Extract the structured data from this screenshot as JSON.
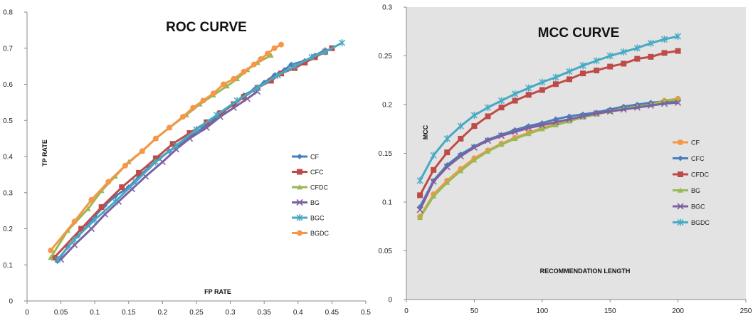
{
  "chart_data": [
    {
      "type": "line",
      "title": "ROC CURVE",
      "xlabel": "FP RATE",
      "ylabel": "TP RATE",
      "xlim": [
        0,
        0.5
      ],
      "ylim": [
        0,
        0.8
      ],
      "xticks": [
        "0",
        "0.05",
        "0.1",
        "0.15",
        "0.2",
        "0.25",
        "0.3",
        "0.35",
        "0.4",
        "0.45",
        "0.5"
      ],
      "yticks": [
        "0",
        "0.1",
        "0.2",
        "0.3",
        "0.4",
        "0.5",
        "0.6",
        "0.7",
        "0.8"
      ],
      "grid": false,
      "background": "#ffffff",
      "legend_position": "right",
      "series": [
        {
          "name": "CF",
          "color": "#4a7ebb",
          "marker": "diamond",
          "points": [
            [
              0.045,
              0.11
            ],
            [
              0.06,
              0.15
            ],
            [
              0.075,
              0.18
            ],
            [
              0.09,
              0.21
            ],
            [
              0.1,
              0.235
            ],
            [
              0.115,
              0.265
            ],
            [
              0.13,
              0.29
            ],
            [
              0.15,
              0.315
            ],
            [
              0.165,
              0.345
            ],
            [
              0.18,
              0.37
            ],
            [
              0.195,
              0.395
            ],
            [
              0.21,
              0.415
            ],
            [
              0.23,
              0.44
            ],
            [
              0.245,
              0.46
            ],
            [
              0.26,
              0.48
            ],
            [
              0.275,
              0.5
            ],
            [
              0.29,
              0.525
            ],
            [
              0.305,
              0.545
            ],
            [
              0.32,
              0.57
            ],
            [
              0.335,
              0.585
            ],
            [
              0.35,
              0.605
            ],
            [
              0.365,
              0.625
            ],
            [
              0.38,
              0.64
            ],
            [
              0.39,
              0.655
            ],
            [
              0.41,
              0.665
            ],
            [
              0.425,
              0.68
            ],
            [
              0.44,
              0.695
            ]
          ]
        },
        {
          "name": "CFC",
          "color": "#be4b48",
          "marker": "square",
          "points": [
            [
              0.04,
              0.12
            ],
            [
              0.08,
              0.2
            ],
            [
              0.11,
              0.26
            ],
            [
              0.14,
              0.315
            ],
            [
              0.165,
              0.355
            ],
            [
              0.19,
              0.395
            ],
            [
              0.215,
              0.435
            ],
            [
              0.24,
              0.465
            ],
            [
              0.265,
              0.495
            ],
            [
              0.285,
              0.52
            ],
            [
              0.305,
              0.545
            ],
            [
              0.32,
              0.565
            ],
            [
              0.34,
              0.59
            ],
            [
              0.36,
              0.61
            ],
            [
              0.375,
              0.63
            ],
            [
              0.395,
              0.645
            ],
            [
              0.41,
              0.66
            ],
            [
              0.425,
              0.675
            ],
            [
              0.44,
              0.69
            ],
            [
              0.45,
              0.7
            ]
          ]
        },
        {
          "name": "CFDC",
          "color": "#98b954",
          "marker": "triangle",
          "points": [
            [
              0.035,
              0.12
            ],
            [
              0.06,
              0.195
            ],
            [
              0.09,
              0.255
            ],
            [
              0.11,
              0.305
            ],
            [
              0.13,
              0.345
            ],
            [
              0.15,
              0.385
            ],
            [
              0.17,
              0.415
            ],
            [
              0.19,
              0.45
            ],
            [
              0.21,
              0.48
            ],
            [
              0.235,
              0.515
            ],
            [
              0.255,
              0.545
            ],
            [
              0.275,
              0.57
            ],
            [
              0.295,
              0.595
            ],
            [
              0.31,
              0.615
            ],
            [
              0.325,
              0.64
            ],
            [
              0.34,
              0.66
            ],
            [
              0.36,
              0.68
            ]
          ]
        },
        {
          "name": "BG",
          "color": "#7d60a0",
          "marker": "x",
          "points": [
            [
              0.05,
              0.115
            ],
            [
              0.07,
              0.155
            ],
            [
              0.095,
              0.2
            ],
            [
              0.115,
              0.24
            ],
            [
              0.135,
              0.275
            ],
            [
              0.155,
              0.31
            ],
            [
              0.175,
              0.345
            ],
            [
              0.2,
              0.385
            ],
            [
              0.22,
              0.42
            ],
            [
              0.24,
              0.45
            ],
            [
              0.265,
              0.48
            ],
            [
              0.285,
              0.51
            ],
            [
              0.305,
              0.535
            ],
            [
              0.325,
              0.56
            ],
            [
              0.34,
              0.58
            ]
          ]
        },
        {
          "name": "BGC",
          "color": "#46aac5",
          "marker": "star",
          "points": [
            [
              0.045,
              0.115
            ],
            [
              0.07,
              0.17
            ],
            [
              0.1,
              0.225
            ],
            [
              0.13,
              0.275
            ],
            [
              0.16,
              0.33
            ],
            [
              0.19,
              0.385
            ],
            [
              0.22,
              0.43
            ],
            [
              0.25,
              0.475
            ],
            [
              0.28,
              0.515
            ],
            [
              0.31,
              0.555
            ],
            [
              0.34,
              0.59
            ],
            [
              0.37,
              0.625
            ],
            [
              0.395,
              0.65
            ],
            [
              0.42,
              0.675
            ],
            [
              0.44,
              0.69
            ],
            [
              0.465,
              0.715
            ]
          ]
        },
        {
          "name": "BGDC",
          "color": "#f79646",
          "marker": "circle",
          "points": [
            [
              0.035,
              0.14
            ],
            [
              0.07,
              0.22
            ],
            [
              0.095,
              0.28
            ],
            [
              0.12,
              0.33
            ],
            [
              0.145,
              0.375
            ],
            [
              0.17,
              0.415
            ],
            [
              0.19,
              0.45
            ],
            [
              0.21,
              0.48
            ],
            [
              0.23,
              0.51
            ],
            [
              0.245,
              0.535
            ],
            [
              0.26,
              0.555
            ],
            [
              0.275,
              0.575
            ],
            [
              0.29,
              0.6
            ],
            [
              0.305,
              0.615
            ],
            [
              0.32,
              0.635
            ],
            [
              0.335,
              0.655
            ],
            [
              0.345,
              0.67
            ],
            [
              0.355,
              0.685
            ],
            [
              0.365,
              0.7
            ],
            [
              0.375,
              0.71
            ]
          ]
        }
      ]
    },
    {
      "type": "line",
      "title": "MCC CURVE",
      "xlabel": "RECOMMENDATION  LENGTH",
      "ylabel": "MCC",
      "xlim": [
        0,
        250
      ],
      "ylim": [
        0,
        0.3
      ],
      "xticks": [
        "0",
        "50",
        "100",
        "150",
        "200",
        "250"
      ],
      "yticks": [
        "0",
        "0.05",
        "0.1",
        "0.15",
        "0.2",
        "0.25",
        "0.3"
      ],
      "grid": false,
      "background": "#e3e3e3",
      "legend_position": "right",
      "x": [
        10,
        20,
        30,
        40,
        50,
        60,
        70,
        80,
        90,
        100,
        110,
        120,
        130,
        140,
        150,
        160,
        170,
        180,
        190,
        200
      ],
      "series": [
        {
          "name": "CF",
          "color": "#f79646",
          "marker": "circle",
          "values": [
            0.085,
            0.108,
            0.122,
            0.134,
            0.145,
            0.153,
            0.16,
            0.166,
            0.171,
            0.176,
            0.18,
            0.184,
            0.188,
            0.191,
            0.194,
            0.197,
            0.199,
            0.201,
            0.204,
            0.206
          ]
        },
        {
          "name": "CFC",
          "color": "#4a7ebb",
          "marker": "diamond",
          "values": [
            0.095,
            0.122,
            0.138,
            0.149,
            0.157,
            0.164,
            0.169,
            0.174,
            0.178,
            0.181,
            0.185,
            0.188,
            0.19,
            0.192,
            0.195,
            0.198,
            0.2,
            0.202,
            0.203,
            0.204
          ]
        },
        {
          "name": "CFDC",
          "color": "#be4b48",
          "marker": "square",
          "values": [
            0.107,
            0.133,
            0.151,
            0.165,
            0.178,
            0.188,
            0.197,
            0.204,
            0.21,
            0.215,
            0.221,
            0.226,
            0.232,
            0.235,
            0.239,
            0.242,
            0.247,
            0.249,
            0.253,
            0.255
          ]
        },
        {
          "name": "BG",
          "color": "#98b954",
          "marker": "triangle",
          "values": [
            0.084,
            0.106,
            0.12,
            0.132,
            0.143,
            0.152,
            0.159,
            0.165,
            0.17,
            0.175,
            0.179,
            0.183,
            0.187,
            0.19,
            0.193,
            0.196,
            0.198,
            0.2,
            0.204,
            0.205
          ]
        },
        {
          "name": "BGC",
          "color": "#7d60a0",
          "marker": "x",
          "values": [
            0.092,
            0.121,
            0.136,
            0.147,
            0.156,
            0.163,
            0.168,
            0.172,
            0.176,
            0.179,
            0.182,
            0.185,
            0.188,
            0.191,
            0.193,
            0.195,
            0.197,
            0.199,
            0.201,
            0.202
          ]
        },
        {
          "name": "BGDC",
          "color": "#46aac5",
          "marker": "star",
          "values": [
            0.122,
            0.148,
            0.165,
            0.178,
            0.189,
            0.197,
            0.204,
            0.211,
            0.217,
            0.223,
            0.228,
            0.234,
            0.24,
            0.245,
            0.25,
            0.254,
            0.258,
            0.263,
            0.267,
            0.27
          ]
        }
      ]
    }
  ]
}
